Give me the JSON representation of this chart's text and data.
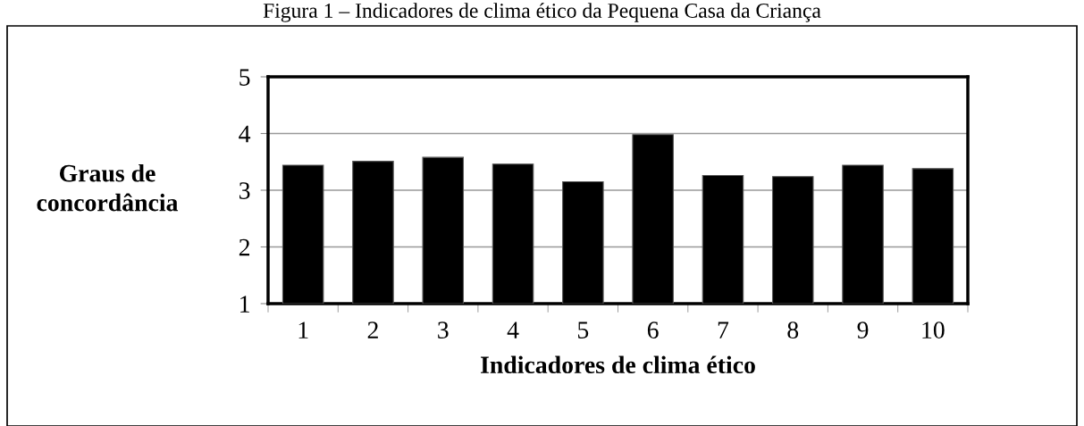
{
  "chart_data": {
    "type": "bar",
    "title": "Figura 1 – Indicadores de clima ético da Pequena Casa da Criança",
    "categories": [
      "1",
      "2",
      "3",
      "4",
      "5",
      "6",
      "7",
      "8",
      "9",
      "10"
    ],
    "values": [
      3.44,
      3.51,
      3.58,
      3.46,
      3.15,
      3.98,
      3.26,
      3.24,
      3.44,
      3.38
    ],
    "color": "#000000",
    "ylim": [
      1,
      5
    ],
    "yticks": [
      1,
      2,
      3,
      4,
      5
    ],
    "grid": "y",
    "xlabel": "Indicadores de clima ético",
    "ylabel": "Graus de\nconcordância"
  }
}
